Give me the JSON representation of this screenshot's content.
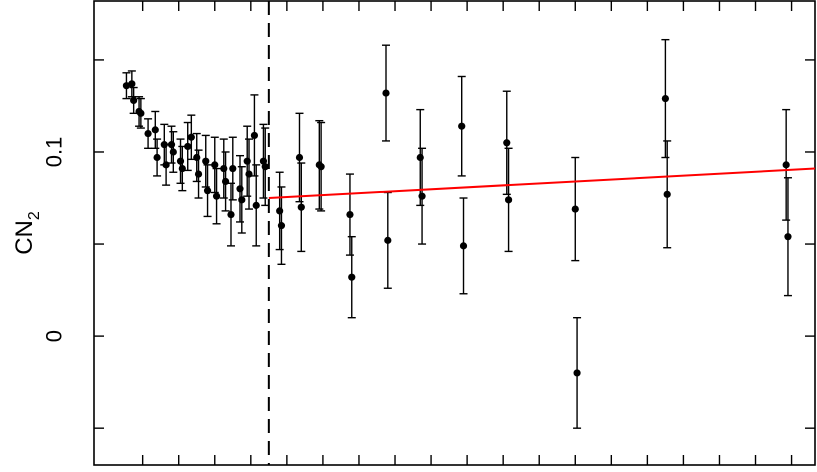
{
  "chart_data": {
    "type": "scatter",
    "title": "",
    "xlabel": "",
    "ylabel": "CN",
    "ylabel_subscript": "2",
    "xlim": [
      -6.7,
      33.3
    ],
    "ylim": [
      -0.07,
      0.182
    ],
    "y_ticks": [
      -0.05,
      0,
      0.05,
      0.1,
      0.15
    ],
    "y_tick_labels": [
      {
        "value": 0,
        "label": "0"
      },
      {
        "value": 0.1,
        "label": "0.1"
      }
    ],
    "x_ticks": [
      -4,
      -2,
      0,
      2,
      4,
      6,
      8,
      10,
      12,
      14,
      16,
      18,
      20,
      22,
      24,
      26,
      28,
      30,
      32
    ],
    "grid": false,
    "threshold_line": {
      "x": 3,
      "style": "dashed"
    },
    "fit_line": {
      "color": "#ff0000",
      "x": [
        3,
        33.3
      ],
      "y": [
        0.075,
        0.091
      ]
    },
    "points": [
      {
        "x": -4.9,
        "y": 0.136,
        "err": 0.007
      },
      {
        "x": -4.6,
        "y": 0.137,
        "err": 0.007
      },
      {
        "x": -4.5,
        "y": 0.128,
        "err": 0.007
      },
      {
        "x": -4.2,
        "y": 0.122,
        "err": 0.008
      },
      {
        "x": -4.1,
        "y": 0.121,
        "err": 0.008
      },
      {
        "x": -3.7,
        "y": 0.11,
        "err": 0.008
      },
      {
        "x": -3.3,
        "y": 0.112,
        "err": 0.01
      },
      {
        "x": -3.2,
        "y": 0.097,
        "err": 0.01
      },
      {
        "x": -2.8,
        "y": 0.104,
        "err": 0.011
      },
      {
        "x": -2.7,
        "y": 0.093,
        "err": 0.011
      },
      {
        "x": -2.4,
        "y": 0.104,
        "err": 0.01
      },
      {
        "x": -2.3,
        "y": 0.1,
        "err": 0.011
      },
      {
        "x": -1.9,
        "y": 0.095,
        "err": 0.012
      },
      {
        "x": -1.8,
        "y": 0.091,
        "err": 0.012
      },
      {
        "x": -1.5,
        "y": 0.103,
        "err": 0.013
      },
      {
        "x": -1.3,
        "y": 0.108,
        "err": 0.012
      },
      {
        "x": -1.0,
        "y": 0.097,
        "err": 0.013
      },
      {
        "x": -0.9,
        "y": 0.088,
        "err": 0.013
      },
      {
        "x": -0.5,
        "y": 0.095,
        "err": 0.014
      },
      {
        "x": -0.4,
        "y": 0.079,
        "err": 0.014
      },
      {
        "x": 0.0,
        "y": 0.093,
        "err": 0.015
      },
      {
        "x": 0.1,
        "y": 0.076,
        "err": 0.015
      },
      {
        "x": 0.5,
        "y": 0.091,
        "err": 0.016
      },
      {
        "x": 0.6,
        "y": 0.084,
        "err": 0.016
      },
      {
        "x": 0.9,
        "y": 0.066,
        "err": 0.017
      },
      {
        "x": 1.0,
        "y": 0.091,
        "err": 0.017
      },
      {
        "x": 1.4,
        "y": 0.08,
        "err": 0.018
      },
      {
        "x": 1.5,
        "y": 0.074,
        "err": 0.018
      },
      {
        "x": 1.8,
        "y": 0.095,
        "err": 0.019
      },
      {
        "x": 1.9,
        "y": 0.088,
        "err": 0.019
      },
      {
        "x": 2.2,
        "y": 0.109,
        "err": 0.022
      },
      {
        "x": 2.3,
        "y": 0.071,
        "err": 0.022
      },
      {
        "x": 2.7,
        "y": 0.095,
        "err": 0.02
      },
      {
        "x": 2.8,
        "y": 0.092,
        "err": 0.021
      },
      {
        "x": 3.6,
        "y": 0.068,
        "err": 0.021
      },
      {
        "x": 3.7,
        "y": 0.06,
        "err": 0.021
      },
      {
        "x": 4.7,
        "y": 0.097,
        "err": 0.024
      },
      {
        "x": 4.8,
        "y": 0.07,
        "err": 0.024
      },
      {
        "x": 5.8,
        "y": 0.093,
        "err": 0.024
      },
      {
        "x": 5.9,
        "y": 0.092,
        "err": 0.024
      },
      {
        "x": 7.5,
        "y": 0.066,
        "err": 0.022
      },
      {
        "x": 7.6,
        "y": 0.032,
        "err": 0.022
      },
      {
        "x": 9.5,
        "y": 0.132,
        "err": 0.026
      },
      {
        "x": 9.6,
        "y": 0.052,
        "err": 0.026
      },
      {
        "x": 11.4,
        "y": 0.097,
        "err": 0.026
      },
      {
        "x": 11.5,
        "y": 0.076,
        "err": 0.026
      },
      {
        "x": 13.7,
        "y": 0.114,
        "err": 0.027
      },
      {
        "x": 13.8,
        "y": 0.049,
        "err": 0.026
      },
      {
        "x": 16.2,
        "y": 0.105,
        "err": 0.028
      },
      {
        "x": 16.3,
        "y": 0.074,
        "err": 0.028
      },
      {
        "x": 20.0,
        "y": 0.069,
        "err": 0.028
      },
      {
        "x": 20.1,
        "y": -0.02,
        "err": 0.03
      },
      {
        "x": 25.0,
        "y": 0.129,
        "err": 0.032
      },
      {
        "x": 25.1,
        "y": 0.077,
        "err": 0.029
      },
      {
        "x": 31.7,
        "y": 0.093,
        "err": 0.03
      },
      {
        "x": 31.8,
        "y": 0.054,
        "err": 0.032
      }
    ]
  }
}
